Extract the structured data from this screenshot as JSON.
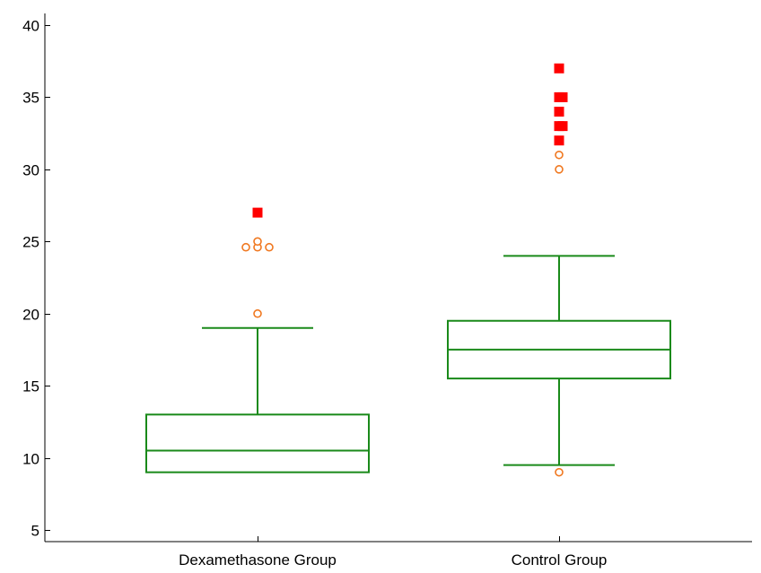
{
  "chart_data": {
    "type": "box",
    "title": "",
    "xlabel": "",
    "ylabel": "",
    "ylim": [
      4,
      41
    ],
    "yticks": [
      5,
      10,
      15,
      20,
      25,
      30,
      35,
      40
    ],
    "categories": [
      "Dexamethasone Group",
      "Control Group"
    ],
    "boxes": [
      {
        "category": "Dexamethasone Group",
        "whisker_low": 9,
        "q1": 9,
        "median": 10.5,
        "q3": 13,
        "whisker_high": 19,
        "outliers": [
          20,
          24.6,
          24.6,
          25,
          24.6
        ],
        "extremes": [
          27
        ]
      },
      {
        "category": "Control Group",
        "whisker_low": 9.5,
        "q1": 15.5,
        "median": 17.5,
        "q3": 19.5,
        "whisker_high": 24,
        "outliers": [
          9,
          30,
          31
        ],
        "extremes": [
          32,
          33,
          33,
          34,
          35,
          35,
          37
        ]
      }
    ],
    "colors": {
      "box": "#1a8a1a",
      "outlier": "#f07820",
      "extreme": "#ff0000",
      "axis": "#000000"
    },
    "grid": false,
    "legend": "none"
  }
}
